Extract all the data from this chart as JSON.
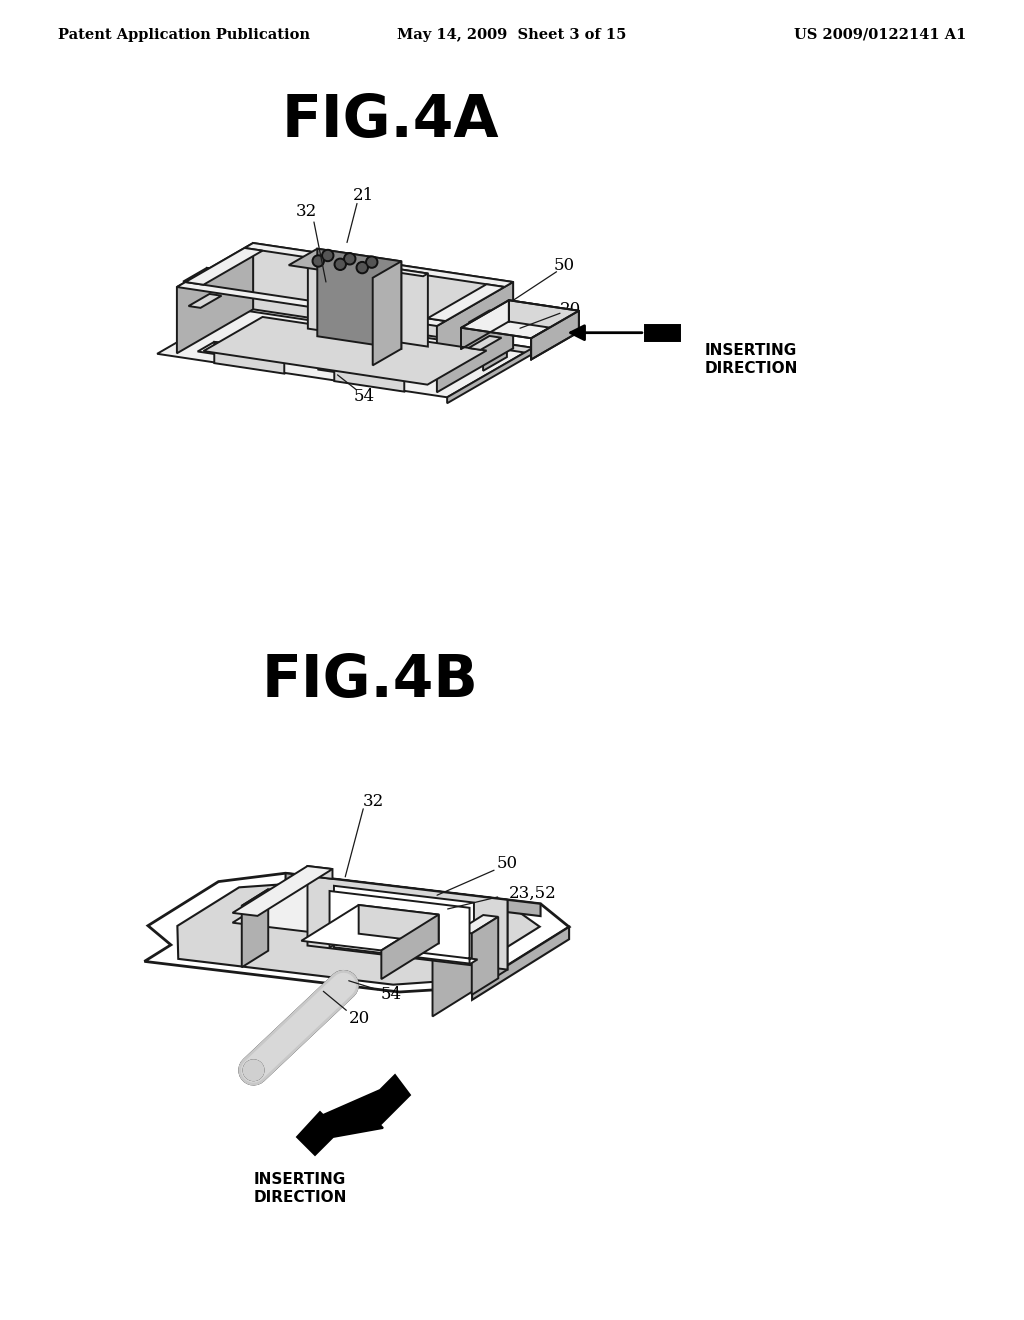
{
  "background_color": "#ffffff",
  "header_left": "Patent Application Publication",
  "header_center": "May 14, 2009  Sheet 3 of 15",
  "header_right": "US 2009/0122141 A1",
  "header_fontsize": 10.5,
  "fig4a_title": "FIG.4A",
  "fig4a_title_fontsize": 42,
  "fig4b_title": "FIG.4B",
  "fig4b_title_fontsize": 42,
  "label_fontsize": 12,
  "annotation_fontsize": 11,
  "line_color": "#1a1a1a",
  "line_width": 1.4,
  "fill_white": "#ffffff",
  "fill_light": "#f0f0f0",
  "fill_mid": "#d8d8d8",
  "fill_dark": "#b0b0b0",
  "fill_darker": "#888888"
}
